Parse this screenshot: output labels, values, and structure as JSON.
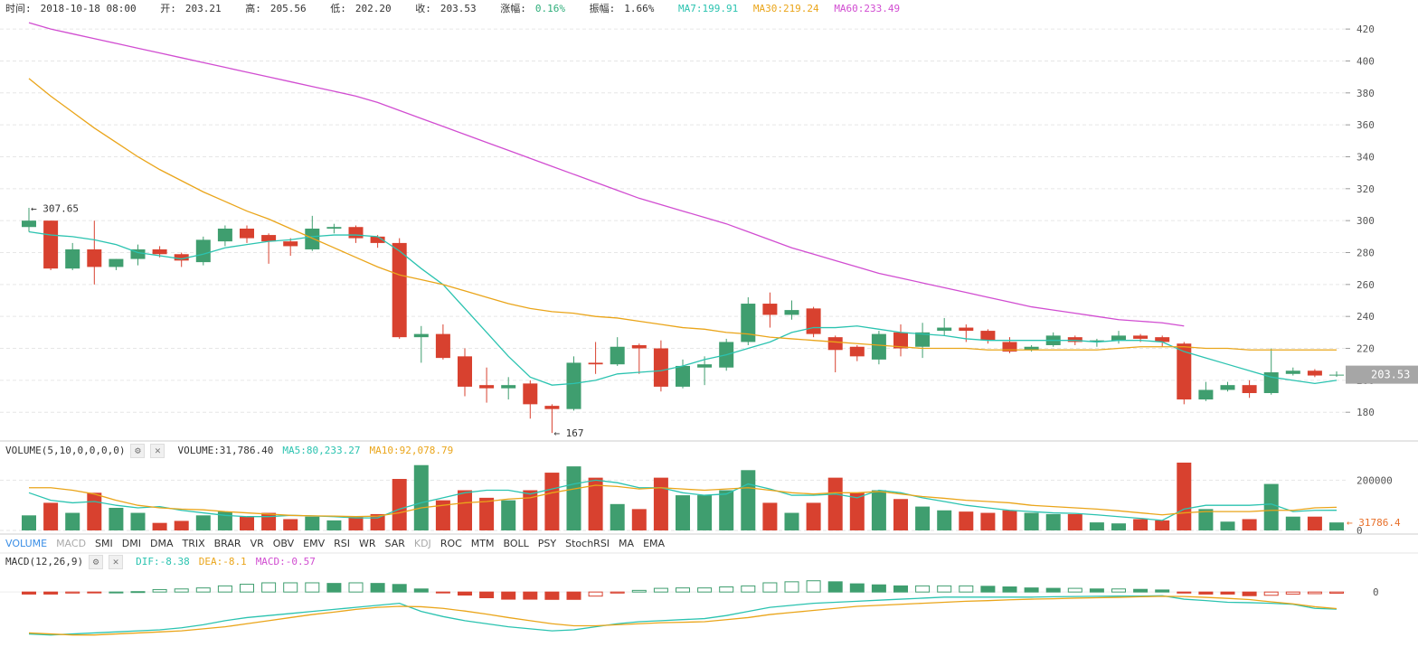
{
  "header": {
    "time_label": "时间:",
    "time_value": "2018-10-18 08:00",
    "open_label": "开:",
    "open_value": "203.21",
    "high_label": "高:",
    "high_value": "205.56",
    "low_label": "低:",
    "low_value": "202.20",
    "close_label": "收:",
    "close_value": "203.53",
    "change_label": "涨幅:",
    "change_value": "0.16%",
    "amplitude_label": "振幅:",
    "amplitude_value": "1.66%",
    "ma7": "MA7:199.91",
    "ma30": "MA30:219.24",
    "ma60": "MA60:233.49"
  },
  "colors": {
    "up": "#3f9e6f",
    "down": "#d8412f",
    "ma7": "#2bc3b0",
    "ma30": "#eaa51a",
    "ma60": "#d14dd1",
    "dif": "#2bc3b0",
    "dea": "#eaa51a",
    "price_tag": "#a6a6a6",
    "volume_tag": "#e8702a"
  },
  "volume_legend": {
    "title": "VOLUME(5,10,0,0,0,0)",
    "gear_icon": "gear-icon",
    "close_icon": "close-icon",
    "volume": "VOLUME:31,786.40",
    "ma5": "MA5:80,233.27",
    "ma10": "MA10:92,078.79"
  },
  "macd_legend": {
    "title": "MACD(12,26,9)",
    "dif": "DIF:-8.38",
    "dea": "DEA:-8.1",
    "macd": "MACD:-0.57"
  },
  "indicator_tabs": [
    "VOLUME",
    "MACD",
    "SMI",
    "DMI",
    "DMA",
    "TRIX",
    "BRAR",
    "VR",
    "OBV",
    "EMV",
    "RSI",
    "WR",
    "SAR",
    "KDJ",
    "ROC",
    "MTM",
    "BOLL",
    "PSY",
    "StochRSI",
    "MA",
    "EMA"
  ],
  "active_tab": "VOLUME",
  "disabled_tabs": [
    "MACD",
    "KDJ"
  ],
  "chart_data": [
    {
      "type": "candlestick",
      "y_ticks": [
        180,
        200,
        220,
        240,
        260,
        280,
        300,
        320,
        340,
        360,
        380,
        400,
        420
      ],
      "ylim": [
        162,
        428
      ],
      "grid": true,
      "candles": [
        {
          "o": 296,
          "h": 308,
          "l": 293,
          "c": 300
        },
        {
          "o": 300,
          "h": 300,
          "l": 269,
          "c": 270
        },
        {
          "o": 270,
          "h": 286,
          "l": 269,
          "c": 282
        },
        {
          "o": 282,
          "h": 300,
          "l": 260,
          "c": 271
        },
        {
          "o": 271,
          "h": 276,
          "l": 269,
          "c": 276
        },
        {
          "o": 276,
          "h": 285,
          "l": 272,
          "c": 282
        },
        {
          "o": 282,
          "h": 284,
          "l": 277,
          "c": 279
        },
        {
          "o": 279,
          "h": 280,
          "l": 271,
          "c": 275
        },
        {
          "o": 274,
          "h": 290,
          "l": 272,
          "c": 288
        },
        {
          "o": 287,
          "h": 297,
          "l": 284,
          "c": 295
        },
        {
          "o": 295,
          "h": 297,
          "l": 286,
          "c": 289
        },
        {
          "o": 291,
          "h": 292,
          "l": 273,
          "c": 287
        },
        {
          "o": 287,
          "h": 289,
          "l": 278,
          "c": 284
        },
        {
          "o": 282,
          "h": 303,
          "l": 281,
          "c": 295
        },
        {
          "o": 295,
          "h": 298,
          "l": 292,
          "c": 296
        },
        {
          "o": 296,
          "h": 297,
          "l": 286,
          "c": 289
        },
        {
          "o": 290,
          "h": 291,
          "l": 283,
          "c": 286
        },
        {
          "o": 286,
          "h": 289,
          "l": 226,
          "c": 227
        },
        {
          "o": 227,
          "h": 234,
          "l": 211,
          "c": 229
        },
        {
          "o": 229,
          "h": 235,
          "l": 213,
          "c": 214
        },
        {
          "o": 215,
          "h": 220,
          "l": 190,
          "c": 196
        },
        {
          "o": 197,
          "h": 208,
          "l": 186,
          "c": 195
        },
        {
          "o": 195,
          "h": 202,
          "l": 188,
          "c": 197
        },
        {
          "o": 198,
          "h": 200,
          "l": 176,
          "c": 185
        },
        {
          "o": 184,
          "h": 185,
          "l": 167,
          "c": 182
        },
        {
          "o": 182,
          "h": 215,
          "l": 181,
          "c": 211
        },
        {
          "o": 211,
          "h": 224,
          "l": 204,
          "c": 210
        },
        {
          "o": 210,
          "h": 227,
          "l": 209,
          "c": 221
        },
        {
          "o": 222,
          "h": 223,
          "l": 204,
          "c": 220
        },
        {
          "o": 220,
          "h": 225,
          "l": 193,
          "c": 196
        },
        {
          "o": 196,
          "h": 213,
          "l": 195,
          "c": 209
        },
        {
          "o": 208,
          "h": 215,
          "l": 197,
          "c": 210
        },
        {
          "o": 208,
          "h": 226,
          "l": 206,
          "c": 224
        },
        {
          "o": 224,
          "h": 252,
          "l": 222,
          "c": 248
        },
        {
          "o": 248,
          "h": 255,
          "l": 233,
          "c": 241
        },
        {
          "o": 241,
          "h": 250,
          "l": 238,
          "c": 244
        },
        {
          "o": 245,
          "h": 246,
          "l": 227,
          "c": 229
        },
        {
          "o": 227,
          "h": 228,
          "l": 205,
          "c": 219
        },
        {
          "o": 221,
          "h": 222,
          "l": 212,
          "c": 215
        },
        {
          "o": 213,
          "h": 231,
          "l": 210,
          "c": 229
        },
        {
          "o": 230,
          "h": 235,
          "l": 215,
          "c": 220
        },
        {
          "o": 221,
          "h": 236,
          "l": 214,
          "c": 230
        },
        {
          "o": 231,
          "h": 239,
          "l": 228,
          "c": 233
        },
        {
          "o": 233,
          "h": 235,
          "l": 224,
          "c": 231
        },
        {
          "o": 231,
          "h": 232,
          "l": 223,
          "c": 225
        },
        {
          "o": 224,
          "h": 227,
          "l": 217,
          "c": 218
        },
        {
          "o": 219,
          "h": 222,
          "l": 218,
          "c": 221
        },
        {
          "o": 222,
          "h": 230,
          "l": 221,
          "c": 228
        },
        {
          "o": 227,
          "h": 228,
          "l": 222,
          "c": 224
        },
        {
          "o": 224,
          "h": 226,
          "l": 221,
          "c": 225
        },
        {
          "o": 225,
          "h": 231,
          "l": 223,
          "c": 228
        },
        {
          "o": 228,
          "h": 229,
          "l": 224,
          "c": 226
        },
        {
          "o": 227,
          "h": 228,
          "l": 221,
          "c": 224
        },
        {
          "o": 223,
          "h": 224,
          "l": 185,
          "c": 188
        },
        {
          "o": 188,
          "h": 199,
          "l": 187,
          "c": 194
        },
        {
          "o": 194,
          "h": 199,
          "l": 193,
          "c": 197
        },
        {
          "o": 197,
          "h": 200,
          "l": 189,
          "c": 192
        },
        {
          "o": 192,
          "h": 220,
          "l": 191,
          "c": 205
        },
        {
          "o": 204,
          "h": 208,
          "l": 203,
          "c": 206
        },
        {
          "o": 206,
          "h": 207,
          "l": 202,
          "c": 203
        },
        {
          "o": 203.21,
          "h": 205.56,
          "l": 202.2,
          "c": 203.53
        }
      ],
      "ma7": [
        293,
        291,
        290,
        288,
        285,
        280,
        278,
        276,
        279,
        283,
        285,
        287,
        288,
        290,
        291,
        291,
        290,
        281,
        270,
        260,
        245,
        230,
        215,
        202,
        197,
        198,
        200,
        204,
        205,
        206,
        209,
        213,
        216,
        220,
        224,
        230,
        233,
        233,
        234,
        232,
        230,
        229,
        228,
        226,
        225,
        225,
        225,
        225,
        225,
        224,
        225,
        225,
        224,
        218,
        214,
        210,
        206,
        202,
        200,
        198,
        200
      ],
      "ma30": [
        389,
        378,
        368,
        358,
        349,
        340,
        332,
        325,
        318,
        312,
        306,
        301,
        295,
        289,
        283,
        277,
        271,
        266,
        263,
        260,
        256,
        252,
        248,
        245,
        243,
        242,
        240,
        239,
        237,
        235,
        233,
        232,
        230,
        229,
        227,
        226,
        225,
        224,
        223,
        222,
        221,
        220,
        220,
        220,
        219,
        219,
        219,
        219,
        219,
        219,
        220,
        221,
        221,
        221,
        220,
        220,
        219,
        219,
        219,
        219,
        219
      ],
      "ma60": [
        424,
        420,
        417,
        414,
        411,
        408,
        405,
        402,
        399,
        396,
        393,
        390,
        387,
        384,
        381,
        378,
        374,
        369,
        364,
        359,
        354,
        349,
        344,
        339,
        334,
        329,
        324,
        319,
        314,
        310,
        306,
        302,
        298,
        293,
        288,
        283,
        279,
        275,
        271,
        267,
        264,
        261,
        258,
        255,
        252,
        249,
        246,
        244,
        242,
        240,
        238,
        237,
        236,
        234
      ],
      "annotations": [
        {
          "index": 0,
          "value": 307.65,
          "label": "← 307.65"
        },
        {
          "index": 24,
          "value": 167,
          "label": "← 167"
        }
      ],
      "last_price_label": "203.53"
    },
    {
      "type": "bar",
      "name": "volume",
      "y_ticks": [
        0,
        200000
      ],
      "ylim": [
        0,
        295000
      ],
      "values": [
        60000,
        110000,
        70000,
        150000,
        90000,
        70000,
        30000,
        38000,
        60000,
        75000,
        55000,
        70000,
        45000,
        55000,
        40000,
        55000,
        65000,
        205000,
        260000,
        120000,
        160000,
        130000,
        120000,
        160000,
        230000,
        255000,
        210000,
        105000,
        85000,
        210000,
        140000,
        140000,
        160000,
        240000,
        110000,
        70000,
        110000,
        210000,
        150000,
        160000,
        125000,
        95000,
        80000,
        75000,
        70000,
        80000,
        70000,
        65000,
        65000,
        32000,
        28000,
        45000,
        40000,
        270000,
        85000,
        35000,
        45000,
        185000,
        55000,
        55000,
        31786
      ],
      "ma5": [
        150000,
        120000,
        110000,
        115000,
        100000,
        90000,
        95000,
        80000,
        70000,
        60000,
        55000,
        55000,
        60000,
        58000,
        55000,
        50000,
        50000,
        85000,
        110000,
        130000,
        150000,
        160000,
        160000,
        145000,
        165000,
        185000,
        200000,
        190000,
        170000,
        170000,
        150000,
        140000,
        145000,
        185000,
        165000,
        140000,
        140000,
        145000,
        130000,
        160000,
        150000,
        130000,
        115000,
        100000,
        90000,
        80000,
        75000,
        70000,
        68000,
        62000,
        55000,
        48000,
        40000,
        85000,
        100000,
        100000,
        100000,
        105000,
        75000,
        80000,
        80233
      ],
      "ma10": [
        170000,
        170000,
        160000,
        145000,
        120000,
        100000,
        90000,
        85000,
        82000,
        75000,
        70000,
        65000,
        60000,
        58000,
        57000,
        55000,
        57000,
        70000,
        90000,
        100000,
        110000,
        115000,
        125000,
        130000,
        150000,
        165000,
        180000,
        175000,
        165000,
        170000,
        165000,
        160000,
        165000,
        170000,
        160000,
        150000,
        145000,
        150000,
        150000,
        155000,
        145000,
        135000,
        128000,
        120000,
        115000,
        110000,
        100000,
        95000,
        90000,
        85000,
        78000,
        70000,
        62000,
        70000,
        75000,
        75000,
        75000,
        80000,
        80000,
        90000,
        92078
      ],
      "last_value_label": "← 31786.4"
    },
    {
      "type": "bar",
      "name": "macd",
      "y_ticks": [
        0
      ],
      "ylim": [
        -26,
        12
      ],
      "macd": [
        -1.0,
        -1.0,
        -0.5,
        -0.3,
        0,
        0.2,
        1.2,
        1.5,
        2.0,
        3.0,
        3.8,
        4.5,
        4.5,
        4.5,
        4.2,
        4.5,
        4.2,
        3.7,
        1.5,
        -0.3,
        -1.5,
        -2.8,
        -3.5,
        -3.5,
        -3.6,
        -3.6,
        -2.0,
        -0.5,
        0.8,
        1.8,
        2.0,
        2.0,
        2.5,
        3.0,
        4.5,
        5.0,
        5.5,
        5.0,
        4.0,
        3.5,
        3.0,
        3.0,
        3.0,
        3.0,
        2.8,
        2.5,
        2.0,
        1.8,
        1.8,
        1.5,
        1.5,
        1.3,
        1.0,
        -0.5,
        -1.0,
        -1.0,
        -1.8,
        -1.6,
        -1.0,
        -0.8,
        -0.57
      ],
      "dif": [
        -20.5,
        -21,
        -20.5,
        -20,
        -19.5,
        -19,
        -18.5,
        -17.5,
        -16,
        -14,
        -12.5,
        -11.5,
        -10.5,
        -9.5,
        -8.5,
        -7.5,
        -6.5,
        -5.5,
        -9.5,
        -12,
        -14,
        -15.5,
        -17,
        -18,
        -19,
        -18.5,
        -17,
        -15.5,
        -14.5,
        -14,
        -13.5,
        -13,
        -11.5,
        -9.5,
        -7.5,
        -6.5,
        -5.5,
        -5,
        -4.5,
        -4,
        -3.5,
        -3,
        -2.5,
        -2.5,
        -2.5,
        -2.5,
        -2.5,
        -2.3,
        -2.2,
        -2.1,
        -2,
        -2,
        -1.8,
        -3.5,
        -4.2,
        -5,
        -5.2,
        -5.5,
        -6,
        -8,
        -8.38
      ],
      "dea": [
        -20,
        -20.5,
        -21,
        -21,
        -20.5,
        -20,
        -19.5,
        -19,
        -18,
        -17,
        -15.5,
        -14,
        -12.5,
        -11,
        -9.8,
        -8.5,
        -7.5,
        -7,
        -7.2,
        -8,
        -9.3,
        -10.8,
        -12.5,
        -14,
        -15.5,
        -16.5,
        -16.5,
        -16,
        -15.5,
        -15,
        -14.8,
        -14.5,
        -13.5,
        -12.5,
        -11,
        -10,
        -9,
        -8,
        -7,
        -6.5,
        -6,
        -5.5,
        -5,
        -4.5,
        -4.2,
        -3.8,
        -3.5,
        -3.3,
        -3.0,
        -2.8,
        -2.6,
        -2.3,
        -2.1,
        -2.2,
        -2.6,
        -3.1,
        -3.7,
        -4.8,
        -5.8,
        -7.2,
        -8.1
      ]
    }
  ]
}
